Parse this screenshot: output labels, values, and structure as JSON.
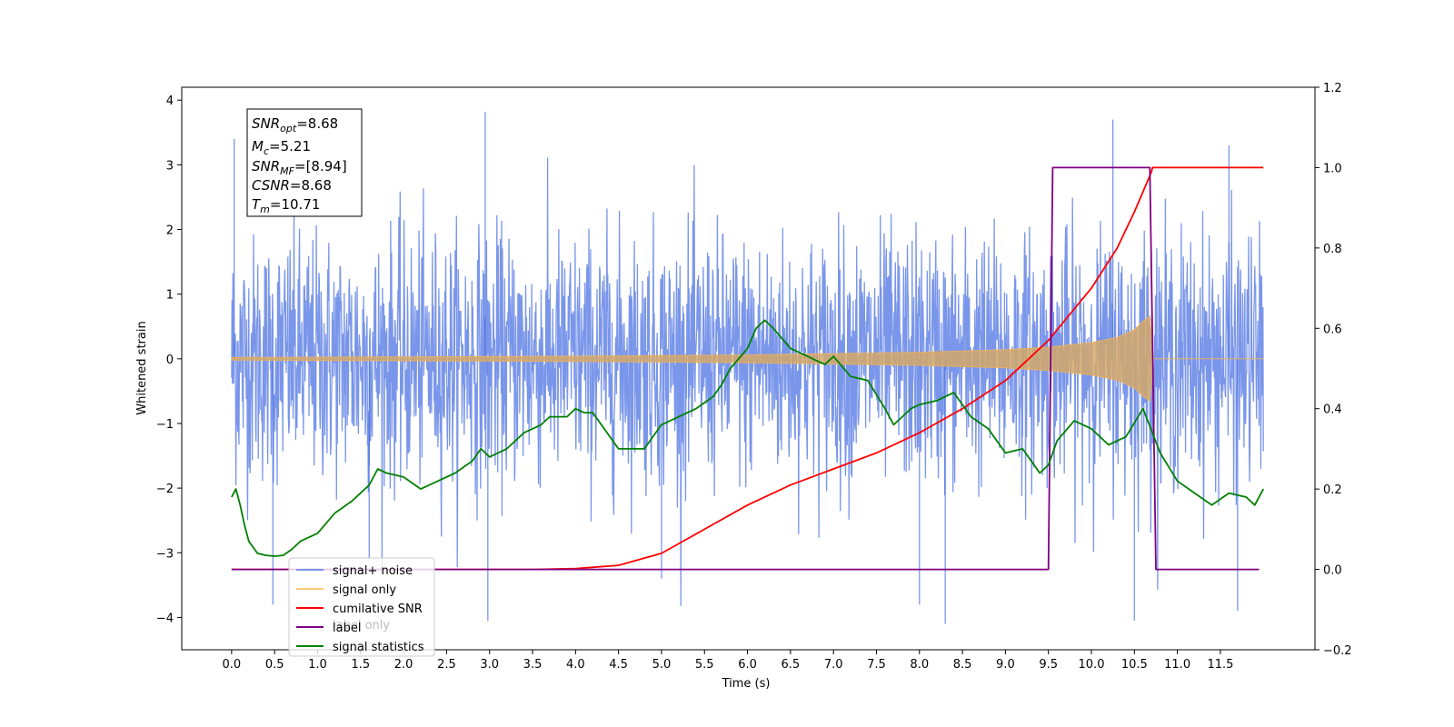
{
  "chart_data": {
    "type": "line",
    "xlabel": "Time (s)",
    "ylabel": "Whitened strain",
    "xlim": [
      -0.58,
      12.6
    ],
    "ylim": [
      -4.5,
      4.2
    ],
    "y2lim": [
      -0.2,
      1.2
    ],
    "grid": false,
    "x_ticks": [
      0.0,
      0.5,
      1.0,
      1.5,
      2.0,
      2.5,
      3.0,
      3.5,
      4.0,
      4.5,
      5.0,
      5.5,
      6.0,
      6.5,
      7.0,
      7.5,
      8.0,
      8.5,
      9.0,
      9.5,
      10.0,
      10.5,
      11.0,
      11.5
    ],
    "x_tick_labels": [
      "0.0",
      "0.5",
      "1.0",
      "1.5",
      "2.0",
      "2.5",
      "3.0",
      "3.5",
      "4.0",
      "4.5",
      "5.0",
      "5.5",
      "6.0",
      "6.5",
      "7.0",
      "7.5",
      "8.0",
      "8.5",
      "9.0",
      "9.5",
      "10.0",
      "10.5",
      "11.0",
      "11.5"
    ],
    "y_ticks": [
      4,
      3,
      2,
      1,
      0,
      -1,
      -2,
      -3,
      -4
    ],
    "y_tick_labels": [
      "4",
      "3",
      "2",
      "1",
      "0",
      "−1",
      "−2",
      "−3",
      "−4"
    ],
    "y2_ticks": [
      1.2,
      1.0,
      0.8,
      0.6,
      0.4,
      0.2,
      0.0,
      -0.2
    ],
    "y2_tick_labels": [
      "1.2",
      "1.0",
      "0.8",
      "0.6",
      "0.4",
      "0.2",
      "0.0",
      "−0.2"
    ],
    "noise": {
      "x_start": 0.0,
      "x_end": 12.0,
      "band": [
        -1.6,
        1.55
      ],
      "max": 3.82,
      "min": -4.1
    },
    "signal_envelope": {
      "x": [
        0,
        1,
        2,
        3,
        4,
        5,
        6,
        7,
        8,
        9,
        9.5,
        10,
        10.3,
        10.5,
        10.6,
        10.68,
        10.72,
        12
      ],
      "amp": [
        0.02,
        0.025,
        0.03,
        0.035,
        0.04,
        0.05,
        0.06,
        0.08,
        0.1,
        0.14,
        0.18,
        0.25,
        0.33,
        0.45,
        0.58,
        0.66,
        0.0,
        0.0
      ]
    },
    "series": [
      {
        "name": "signal+ noise",
        "color": "#4169e1",
        "legend_label": "signal+ noise"
      },
      {
        "name": "signal only",
        "color": "#ffa500",
        "legend_label": "signal only"
      },
      {
        "name": "cumilative SNR",
        "color": "#ff0000",
        "legend_label": "cumilative SNR",
        "x": [
          0,
          3.5,
          4.0,
          4.5,
          5.0,
          5.5,
          6.0,
          6.5,
          7.0,
          7.5,
          8.0,
          8.5,
          9.0,
          9.5,
          10.0,
          10.3,
          10.5,
          10.6,
          10.7,
          10.71,
          12.0
        ],
        "y": [
          0,
          0,
          0.002,
          0.01,
          0.04,
          0.1,
          0.16,
          0.21,
          0.25,
          0.29,
          0.34,
          0.4,
          0.47,
          0.57,
          0.7,
          0.8,
          0.89,
          0.94,
          0.99,
          1.0,
          1.0
        ]
      },
      {
        "name": "label",
        "color": "#800080",
        "legend_label": "label",
        "x": [
          0,
          9.5,
          9.55,
          10.68,
          10.75,
          11.95
        ],
        "y": [
          0,
          0,
          1,
          1,
          0,
          0
        ]
      },
      {
        "name": "signal statistics",
        "color": "#008000",
        "legend_label": "signal statistics",
        "x": [
          0,
          0.05,
          0.1,
          0.15,
          0.2,
          0.3,
          0.4,
          0.5,
          0.6,
          0.7,
          0.8,
          1.0,
          1.2,
          1.4,
          1.6,
          1.7,
          1.8,
          2.0,
          2.2,
          2.4,
          2.6,
          2.8,
          2.9,
          3.0,
          3.2,
          3.4,
          3.6,
          3.7,
          3.9,
          4.0,
          4.1,
          4.2,
          4.4,
          4.5,
          4.7,
          4.8,
          5.0,
          5.2,
          5.4,
          5.6,
          5.7,
          5.8,
          6.0,
          6.1,
          6.2,
          6.3,
          6.5,
          6.7,
          6.8,
          6.9,
          7.0,
          7.2,
          7.4,
          7.6,
          7.7,
          7.8,
          7.9,
          8.0,
          8.2,
          8.4,
          8.6,
          8.8,
          9.0,
          9.2,
          9.4,
          9.5,
          9.6,
          9.8,
          10.0,
          10.2,
          10.4,
          10.6,
          10.8,
          11.0,
          11.2,
          11.4,
          11.6,
          11.8,
          11.9,
          12.0
        ],
        "y": [
          0.18,
          0.2,
          0.16,
          0.11,
          0.07,
          0.04,
          0.035,
          0.033,
          0.035,
          0.05,
          0.07,
          0.09,
          0.14,
          0.17,
          0.21,
          0.25,
          0.24,
          0.23,
          0.2,
          0.22,
          0.24,
          0.27,
          0.3,
          0.28,
          0.3,
          0.34,
          0.36,
          0.38,
          0.38,
          0.4,
          0.39,
          0.39,
          0.33,
          0.3,
          0.3,
          0.3,
          0.36,
          0.38,
          0.4,
          0.43,
          0.46,
          0.5,
          0.55,
          0.6,
          0.62,
          0.6,
          0.55,
          0.53,
          0.52,
          0.51,
          0.53,
          0.48,
          0.47,
          0.4,
          0.36,
          0.38,
          0.4,
          0.41,
          0.42,
          0.44,
          0.38,
          0.35,
          0.29,
          0.3,
          0.24,
          0.26,
          0.32,
          0.37,
          0.35,
          0.31,
          0.33,
          0.4,
          0.29,
          0.22,
          0.19,
          0.16,
          0.19,
          0.18,
          0.16,
          0.2
        ]
      }
    ],
    "info_box": [
      "SNR_opt=8.68",
      "M_c=5.21",
      "SNR_MF=[8.94]",
      "CSNR=8.68",
      "T_m=10.71"
    ],
    "legend_placement": "lower-left",
    "legend_overlap_text": "label only"
  },
  "text": {
    "info_snr_opt_value": "=8.68",
    "info_mc_value": "=5.21",
    "info_snrmf_value": "=[8.94]",
    "info_csnr_value": "=8.68",
    "info_tm_value": "=10.71",
    "info_snr_main": "SNR",
    "info_snr_sub_opt": "opt",
    "info_m_main": "M",
    "info_m_sub": "c",
    "info_snrmf_main": "SNR",
    "info_snrmf_sub": "MF",
    "info_csnr_main": "CSNR",
    "info_t_main": "T",
    "info_t_sub": "m"
  }
}
